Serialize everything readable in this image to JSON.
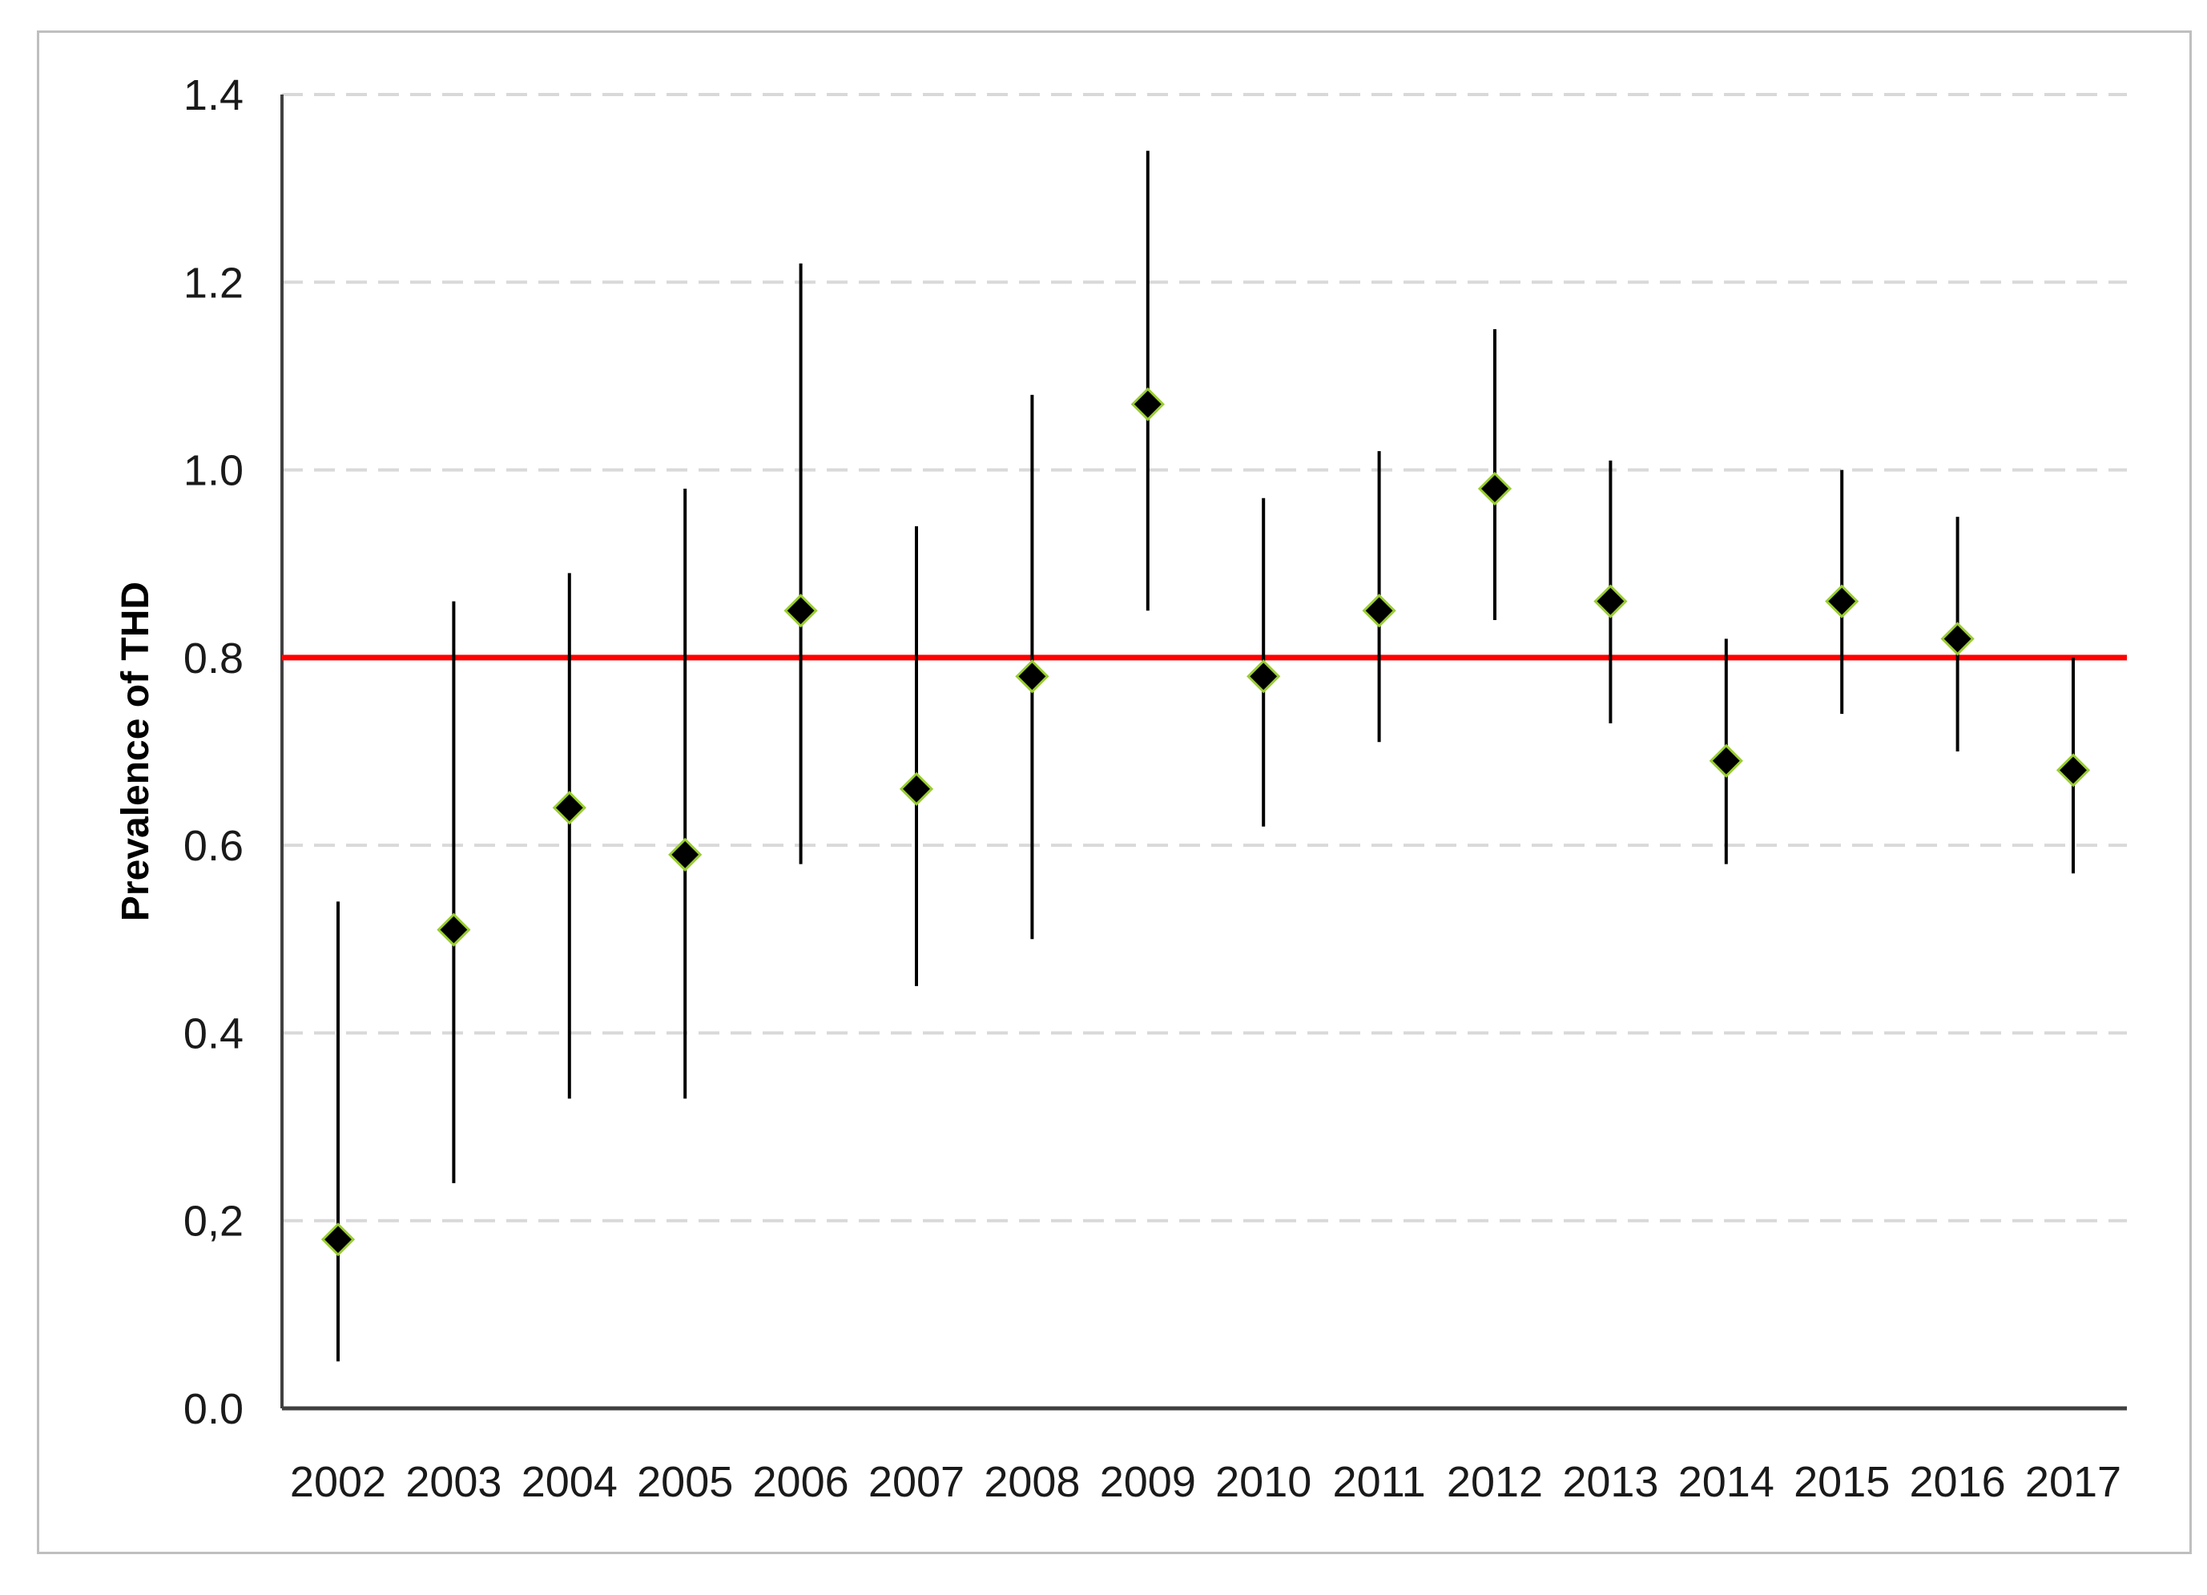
{
  "chart_data": {
    "type": "scatter",
    "title": "",
    "xlabel": "",
    "ylabel": "Prevalence of THD",
    "ylim": [
      0,
      1.4
    ],
    "y_ticks": [
      "0.0",
      "0,2",
      "0.4",
      "0.6",
      "0.8",
      "1.0",
      "1.2",
      "1.4"
    ],
    "y_tick_values": [
      0,
      0.2,
      0.4,
      0.6,
      0.8,
      1.0,
      1.2,
      1.4
    ],
    "categories": [
      "2002",
      "2003",
      "2004",
      "2005",
      "2006",
      "2007",
      "2008",
      "2009",
      "2010",
      "2011",
      "2012",
      "2013",
      "2014",
      "2015",
      "2016",
      "2017"
    ],
    "series": [
      {
        "values": [
          0.18,
          0.51,
          0.64,
          0.59,
          0.85,
          0.66,
          0.78,
          1.07,
          0.78,
          0.85,
          0.98,
          0.86,
          0.69,
          0.86,
          0.82,
          0.68
        ],
        "lower": [
          0.05,
          0.24,
          0.33,
          0.33,
          0.58,
          0.45,
          0.5,
          0.85,
          0.62,
          0.71,
          0.84,
          0.73,
          0.58,
          0.74,
          0.7,
          0.57
        ],
        "upper": [
          0.54,
          0.86,
          0.89,
          0.98,
          1.22,
          0.94,
          1.08,
          1.34,
          0.97,
          1.02,
          1.15,
          1.01,
          0.82,
          1.0,
          0.95,
          0.8
        ]
      }
    ],
    "reference_line": {
      "y": 0.8,
      "color": "#ff0000"
    },
    "grid": true,
    "grid_style": "dashed",
    "marker": "diamond",
    "colors": {
      "marker": "#000000",
      "marker_edge": "#9acd32",
      "errorbar": "#000000",
      "grid": "#d9d9d9",
      "axis": "#404040"
    }
  }
}
